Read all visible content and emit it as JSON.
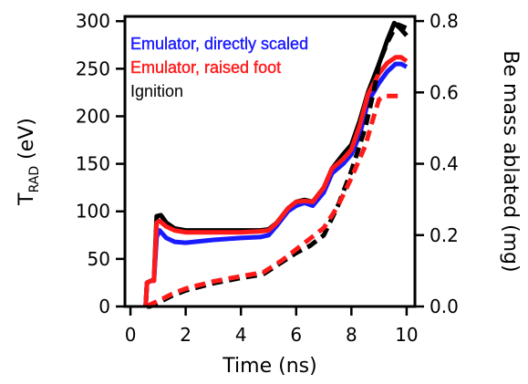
{
  "chart_data": {
    "type": "line",
    "xlabel": "Time (ns)",
    "ylabel_left": {
      "main": "T",
      "sub": "RAD",
      "unit": " (eV)"
    },
    "ylabel_right": "Be mass ablated (mg)",
    "xlim": [
      -0.2,
      10.3
    ],
    "ylim_left": [
      0,
      305
    ],
    "ylim_right": [
      0,
      0.813
    ],
    "x_ticks": [
      0,
      2,
      4,
      6,
      8,
      10
    ],
    "y_left_ticks": [
      0,
      50,
      100,
      150,
      200,
      250,
      300
    ],
    "y_right_ticks": [
      0.0,
      0.2,
      0.4,
      0.6,
      0.8
    ],
    "y_right_tick_labels": [
      "0.0",
      "0.2",
      "0.4",
      "0.6",
      "0.8"
    ],
    "grid": false,
    "legend_position": "top-left",
    "legend": [
      {
        "label": "Emulator, directly scaled",
        "color": "#1a1aff"
      },
      {
        "label": "Emulator, raised foot",
        "color": "#ff1a1a"
      },
      {
        "label": "Ignition",
        "color": "#000000"
      }
    ],
    "series": [
      {
        "name": "Ignition",
        "axis": "left",
        "style": "solid",
        "color": "#000000",
        "x": [
          0.55,
          0.6,
          0.75,
          0.85,
          0.95,
          1.1,
          1.3,
          1.6,
          2.0,
          3.0,
          4.0,
          4.7,
          5.0,
          5.3,
          5.7,
          6.0,
          6.3,
          6.6,
          7.0,
          7.3,
          7.7,
          8.0,
          8.3,
          8.6,
          9.0,
          9.3,
          9.55,
          9.75,
          10.0
        ],
        "y": [
          0,
          25,
          27,
          28,
          95,
          96,
          88,
          82,
          80,
          80,
          80,
          80,
          81,
          88,
          103,
          110,
          112,
          110,
          125,
          145,
          160,
          170,
          195,
          225,
          255,
          280,
          298,
          293,
          285
        ]
      },
      {
        "name": "Emulator, directly scaled",
        "axis": "left",
        "style": "solid",
        "color": "#1a1aff",
        "x": [
          0.55,
          0.6,
          0.75,
          0.85,
          0.95,
          1.05,
          1.3,
          1.6,
          2.0,
          3.0,
          4.0,
          4.7,
          5.0,
          5.3,
          5.7,
          6.0,
          6.3,
          6.6,
          7.0,
          7.3,
          7.7,
          8.0,
          8.3,
          8.6,
          9.0,
          9.3,
          9.6,
          9.8,
          10.0
        ],
        "y": [
          0,
          25,
          27,
          27,
          73,
          80,
          72,
          68,
          67,
          70,
          72,
          73,
          75,
          85,
          100,
          106,
          109,
          106,
          120,
          140,
          150,
          160,
          180,
          215,
          235,
          247,
          255,
          255,
          252
        ]
      },
      {
        "name": "Emulator, raised foot",
        "axis": "left",
        "style": "solid",
        "color": "#ff1a1a",
        "x": [
          0.55,
          0.6,
          0.75,
          0.85,
          0.95,
          1.05,
          1.3,
          1.6,
          2.0,
          3.0,
          4.0,
          4.7,
          5.0,
          5.3,
          5.7,
          6.0,
          6.3,
          6.6,
          7.0,
          7.3,
          7.7,
          8.0,
          8.3,
          8.6,
          9.0,
          9.3,
          9.6,
          9.8,
          10.0
        ],
        "y": [
          0,
          25,
          27,
          27,
          88,
          90,
          84,
          80,
          78,
          78,
          78,
          79,
          80,
          88,
          103,
          110,
          111,
          110,
          125,
          145,
          155,
          165,
          190,
          223,
          245,
          256,
          262,
          262,
          258
        ]
      },
      {
        "name": "Ignition",
        "axis": "right",
        "style": "dashed",
        "color": "#000000",
        "x": [
          0.6,
          0.7,
          1.0,
          1.5,
          2.0,
          3.0,
          4.0,
          4.8,
          5.0,
          5.5,
          6.0,
          6.5,
          7.0,
          7.5,
          8.0,
          8.5,
          8.8,
          9.0,
          9.3,
          9.5,
          9.7,
          10.0
        ],
        "y": [
          0.0,
          0.0,
          0.01,
          0.03,
          0.045,
          0.065,
          0.08,
          0.09,
          0.1,
          0.125,
          0.15,
          0.17,
          0.2,
          0.28,
          0.38,
          0.5,
          0.6,
          0.68,
          0.74,
          0.77,
          0.79,
          0.78
        ]
      },
      {
        "name": "Emulator, raised foot",
        "axis": "right",
        "style": "dashed",
        "color": "#ff1a1a",
        "x": [
          0.6,
          0.7,
          1.0,
          1.5,
          2.0,
          3.0,
          4.0,
          4.8,
          5.0,
          5.5,
          6.0,
          6.5,
          7.0,
          7.5,
          8.0,
          8.5,
          8.8,
          9.0,
          9.2,
          9.4,
          9.6,
          9.8
        ],
        "y": [
          0.0,
          0.005,
          0.015,
          0.035,
          0.05,
          0.07,
          0.085,
          0.095,
          0.105,
          0.13,
          0.16,
          0.19,
          0.22,
          0.28,
          0.36,
          0.45,
          0.53,
          0.58,
          0.59,
          0.59,
          0.59,
          0.59
        ]
      }
    ]
  }
}
